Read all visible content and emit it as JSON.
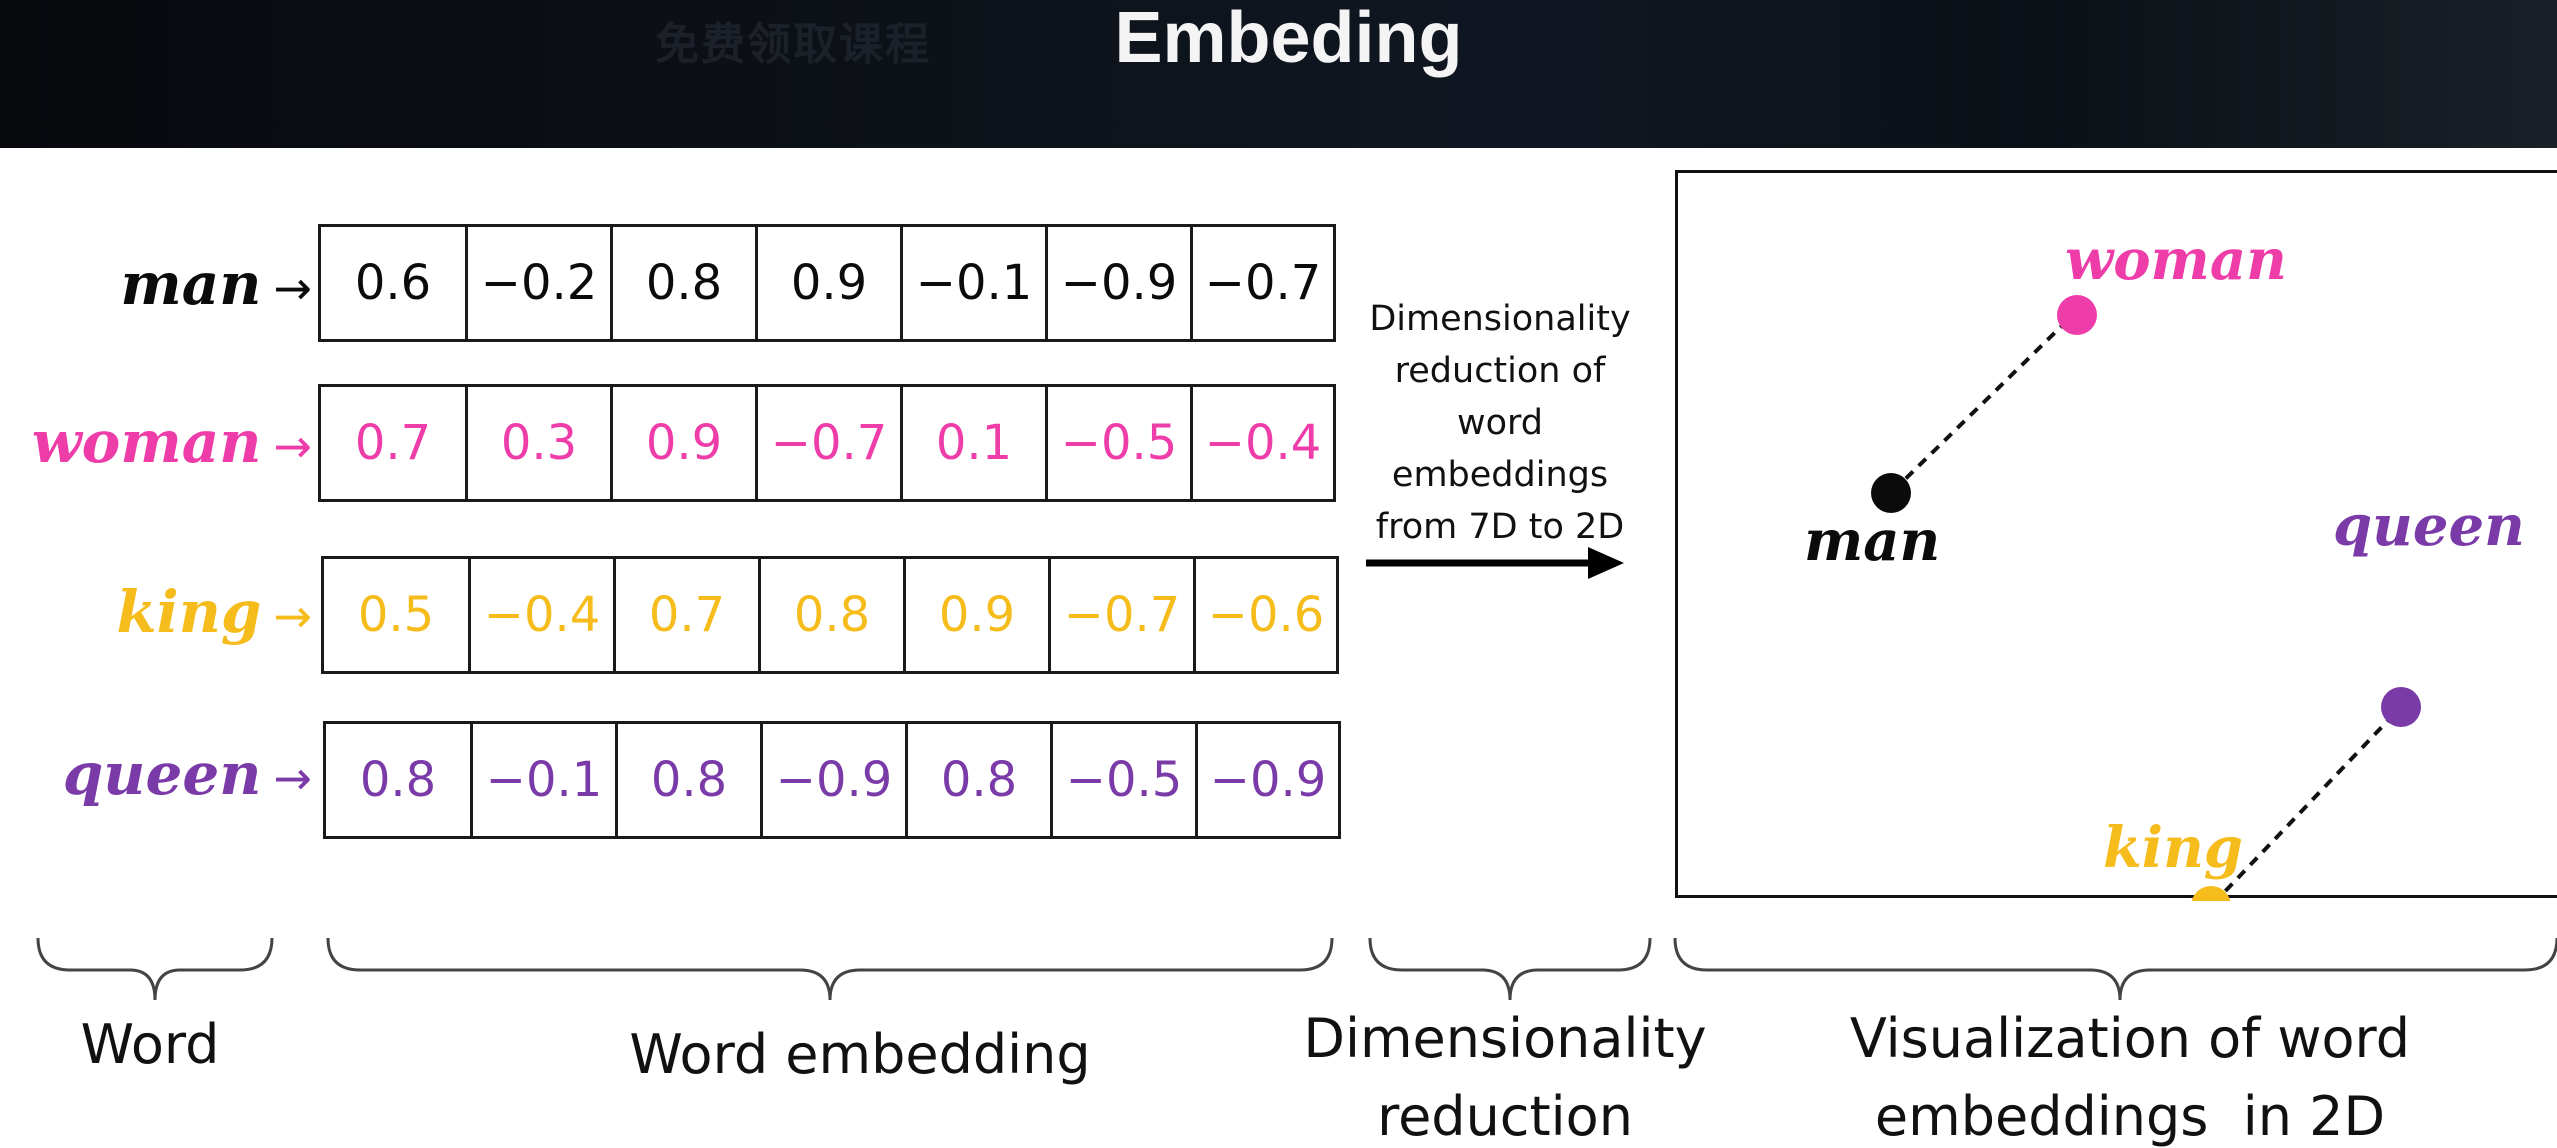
{
  "header": {
    "title": "Embeding",
    "watermark": "免费领取课程"
  },
  "colors": {
    "man": "#0b0b0b",
    "woman": "#ee3ca8",
    "king": "#f6bc1c",
    "queen": "#7a3aa8"
  },
  "rows": [
    {
      "word": "man",
      "arrow": "→",
      "values": [
        "0.6",
        "−0.2",
        "0.8",
        "0.9",
        "−0.1",
        "−0.9",
        "−0.7"
      ]
    },
    {
      "word": "woman",
      "arrow": "→",
      "values": [
        "0.7",
        "0.3",
        "0.9",
        "−0.7",
        "0.1",
        "−0.5",
        "−0.4"
      ]
    },
    {
      "word": "king",
      "arrow": "→",
      "values": [
        "0.5",
        "−0.4",
        "0.7",
        "0.8",
        "0.9",
        "−0.7",
        "−0.6"
      ]
    },
    {
      "word": "queen",
      "arrow": "→",
      "values": [
        "0.8",
        "−0.1",
        "0.8",
        "−0.9",
        "0.8",
        "−0.5",
        "−0.9"
      ]
    }
  ],
  "reduction": {
    "lines": [
      "Dimensionality",
      "reduction of",
      "word",
      "embeddings",
      "from 7D to 2D"
    ]
  },
  "visualization": {
    "labels": {
      "woman": "woman",
      "man": "man",
      "queen": "queen",
      "king": "king"
    }
  },
  "bottom_labels": {
    "word": "Word",
    "embedding": "Word embedding",
    "dimred_line1": "Dimensionality",
    "dimred_line2": "reduction",
    "viz_line1": "Visualization of word",
    "viz_line2": "embeddings  in 2D"
  }
}
